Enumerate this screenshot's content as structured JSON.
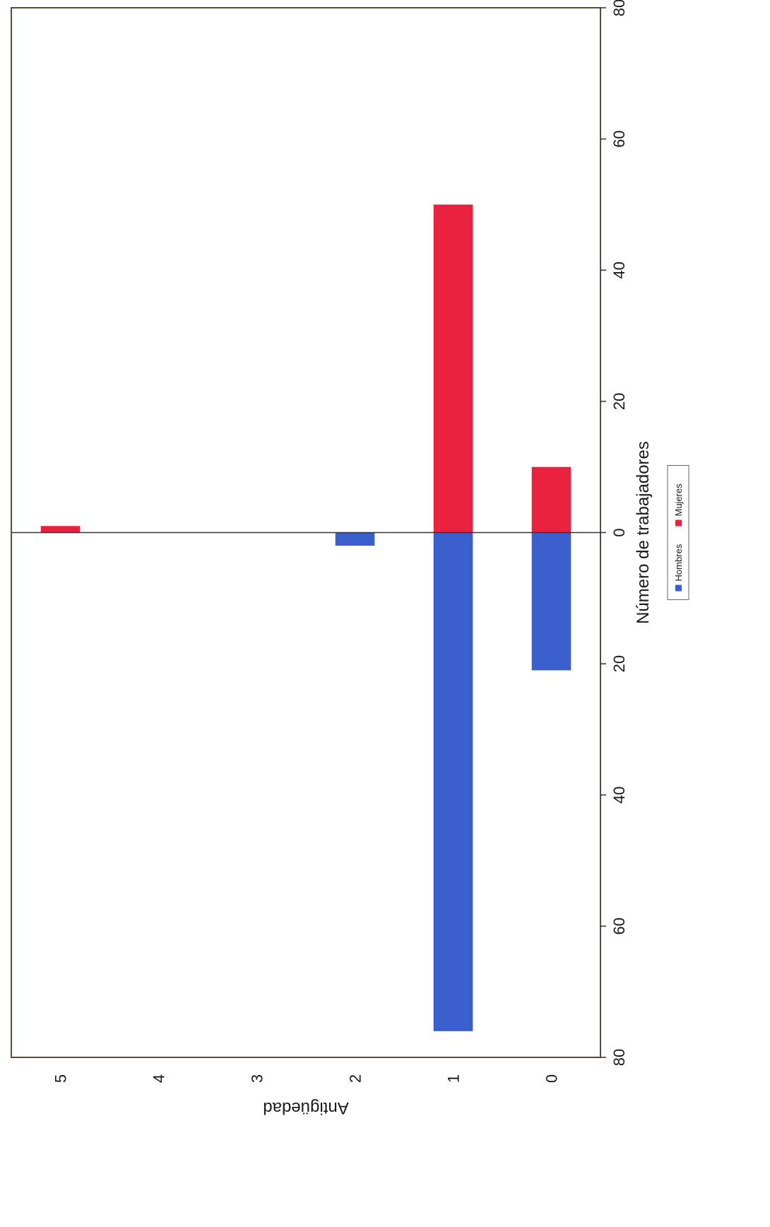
{
  "chart_data": {
    "type": "bar",
    "orientation": "population-pyramid",
    "categories": [
      "0",
      "1",
      "2",
      "3",
      "4",
      "5"
    ],
    "series": [
      {
        "name": "Hombres",
        "values": [
          21,
          76,
          2,
          0,
          0,
          0
        ],
        "color": "#3a5fcd"
      },
      {
        "name": "Mujeres",
        "values": [
          10,
          50,
          0,
          0,
          0,
          1
        ],
        "color": "#e8213f"
      }
    ],
    "xlabel": "Número de trabajadores",
    "ylabel": "Antigüedad",
    "xlim": [
      -80,
      80
    ],
    "x_ticks": [
      -80,
      -60,
      -40,
      -20,
      0,
      20,
      40,
      60,
      80
    ],
    "x_tick_labels": [
      "80",
      "60",
      "40",
      "20",
      "0",
      "20",
      "40",
      "60",
      "80"
    ],
    "grid": false,
    "legend": [
      "Hombres",
      "Mujeres"
    ],
    "legend_position": "bottom",
    "rotation": "rotated 90° counter-clockwise"
  }
}
